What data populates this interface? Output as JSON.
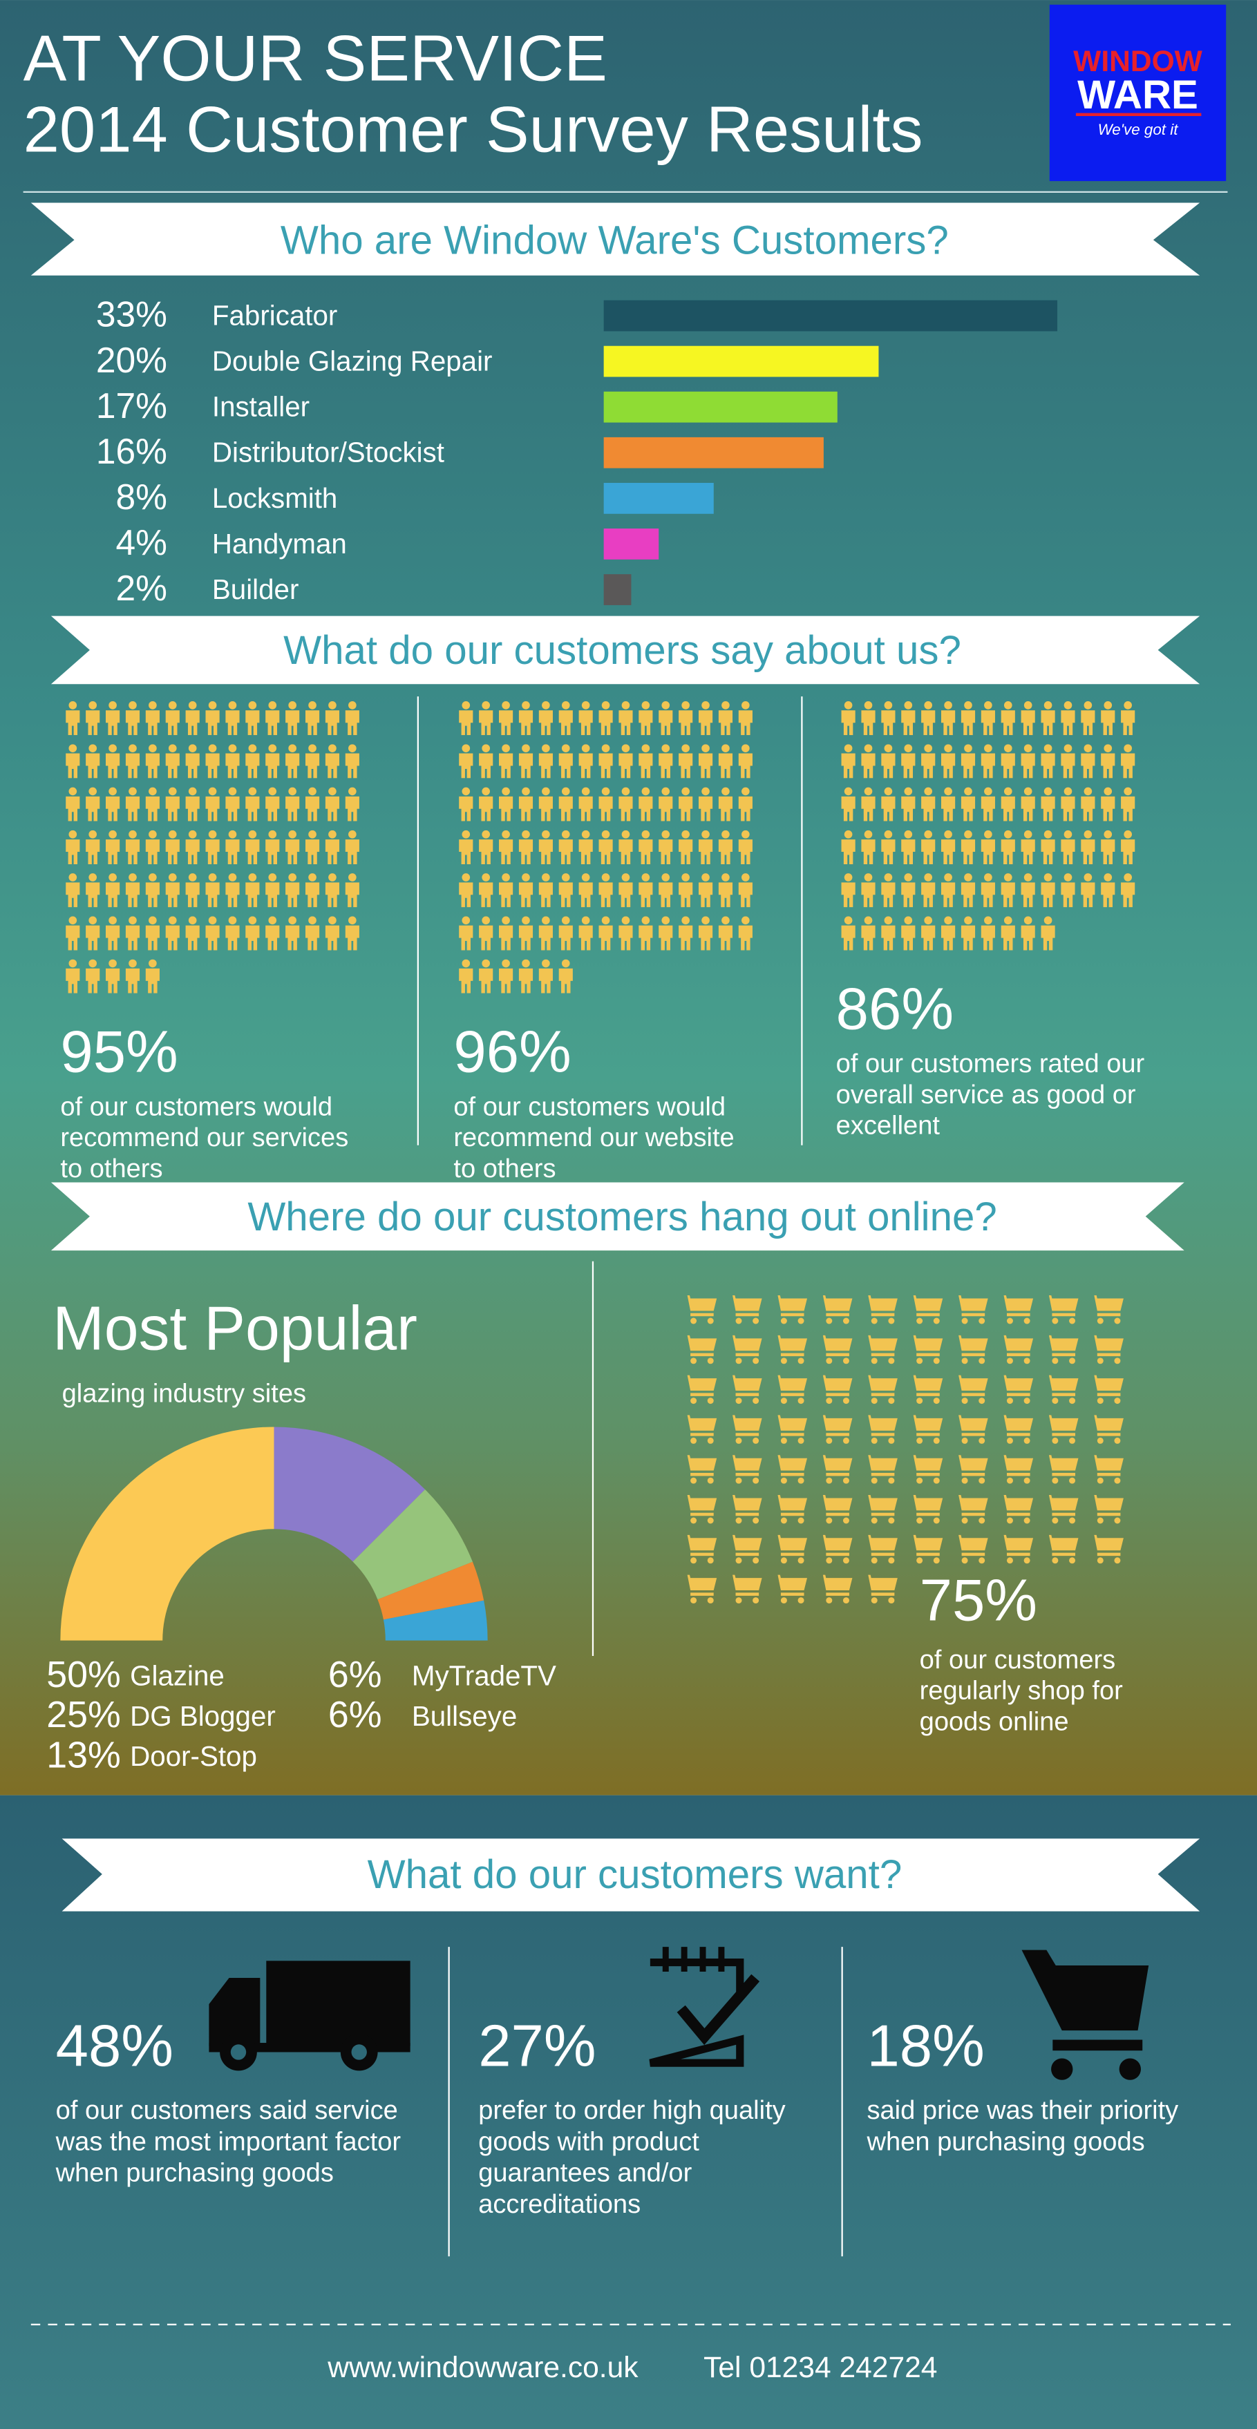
{
  "header": {
    "title": "AT YOUR SERVICE",
    "subtitle": "2014 Customer Survey Results",
    "logo": {
      "name_top": "WINDOW",
      "name_bottom": "WARE",
      "tagline": "We've got it"
    }
  },
  "customers": {
    "type": "bar",
    "heading": "Who are Window Ware's Customers?",
    "categories": [
      "Fabricator",
      "Double Glazing Repair",
      "Installer",
      "Distributor/Stockist",
      "Locksmith",
      "Handyman",
      "Builder"
    ],
    "values": [
      33,
      20,
      17,
      16,
      8,
      4,
      2
    ],
    "value_labels": [
      "33%",
      "20%",
      "17%",
      "16%",
      "8%",
      "4%",
      "2%"
    ],
    "colors": [
      "#1d5362",
      "#f6f622",
      "#8fdc34",
      "#f08a32",
      "#3aa5d6",
      "#e83ec2",
      "#5a5858"
    ]
  },
  "feedback": {
    "type": "pictogram",
    "heading": "What do our customers say about us?",
    "color": "#f2c451",
    "items": [
      {
        "value": 95,
        "value_label": "95%",
        "lines": [
          "of our customers would",
          "recommend our services",
          "to others"
        ]
      },
      {
        "value": 96,
        "value_label": "96%",
        "lines": [
          "of our customers would",
          "recommend our website",
          "to others"
        ]
      },
      {
        "value": 86,
        "value_label": "86%",
        "lines": [
          "of our customers rated our",
          "overall service as good or",
          "excellent"
        ]
      }
    ]
  },
  "online": {
    "type": "pie",
    "heading": "Where do our customers hang out online?",
    "title": "Most Popular",
    "subtitle": "glazing industry sites",
    "categories": [
      "Glazine",
      "DG Blogger",
      "Door-Stop",
      "MyTradeTV",
      "Bullseye"
    ],
    "values": [
      50,
      25,
      13,
      6,
      6
    ],
    "value_labels": [
      "50%",
      "25%",
      "13%",
      "6%",
      "6%"
    ],
    "colors": [
      "#fcc954",
      "#8b7bcb",
      "#96c47b",
      "#f08a32",
      "#3aa5d6"
    ],
    "shopping": {
      "type": "pictogram",
      "color": "#f2c451",
      "value": 75,
      "value_label": "75%",
      "lines": [
        "of our customers",
        "regularly shop for",
        "goods online"
      ]
    }
  },
  "wants": {
    "heading": "What do our customers want?",
    "items": [
      {
        "stat": "48%",
        "lines": [
          "of our customers said service",
          "was the most important factor",
          "when purchasing goods"
        ]
      },
      {
        "stat": "27%",
        "lines": [
          "prefer to order high quality",
          "goods with product",
          "guarantees and/or",
          "accreditations"
        ]
      },
      {
        "stat": "18%",
        "lines": [
          "said price was their priority",
          "when purchasing goods"
        ]
      }
    ]
  },
  "footer": {
    "website": "www.windowware.co.uk",
    "phone": "Tel 01234 242724"
  }
}
